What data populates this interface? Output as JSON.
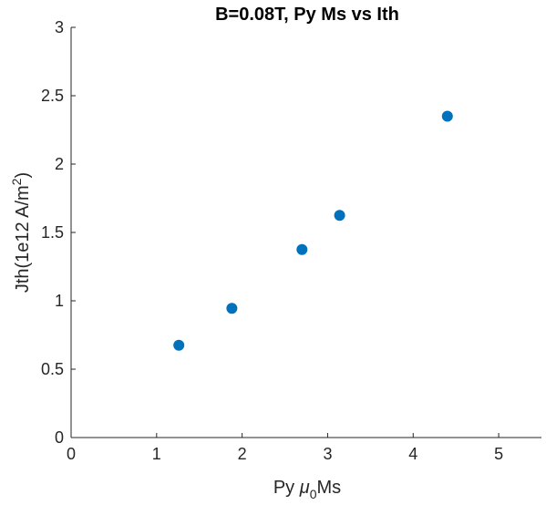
{
  "chart_data": {
    "type": "scatter",
    "title": "B=0.08T, Py Ms vs Ith",
    "xlabel": {
      "pre": "Py ",
      "mu": "μ",
      "sub": "0",
      "post": "Ms"
    },
    "ylabel": {
      "pre": "Jth(1e12 A/m",
      "sup": "2",
      "post": ")"
    },
    "xlim": [
      0,
      5.5
    ],
    "ylim": [
      0,
      3
    ],
    "xticks": [
      0,
      1,
      2,
      3,
      4,
      5
    ],
    "yticks": [
      0,
      0.5,
      1,
      1.5,
      2,
      2.5,
      3
    ],
    "xtick_labels": [
      "0",
      "1",
      "2",
      "3",
      "4",
      "5"
    ],
    "ytick_labels": [
      "0",
      "0.5",
      "1",
      "1.5",
      "2",
      "2.5",
      "3"
    ],
    "grid": false,
    "series": [
      {
        "color": "#0072BD",
        "points": [
          {
            "x": 1.26,
            "y": 0.675
          },
          {
            "x": 1.88,
            "y": 0.945
          },
          {
            "x": 2.7,
            "y": 1.375
          },
          {
            "x": 3.14,
            "y": 1.625
          },
          {
            "x": 4.4,
            "y": 2.35
          }
        ]
      }
    ]
  }
}
